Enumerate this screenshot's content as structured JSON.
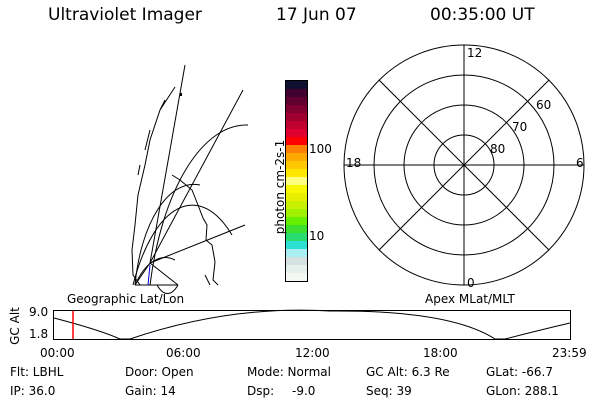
{
  "header": {
    "instrument": "Ultraviolet Imager",
    "date": "17 Jun 07",
    "time": "00:35:00 UT"
  },
  "colorbar": {
    "label": "photon cm-2s-1",
    "ticks": [
      "100",
      "10"
    ],
    "colors": [
      "#f4f8f4",
      "#e6f0ea",
      "#d6e2e0",
      "#a8eef2",
      "#2ce0d4",
      "#28dc70",
      "#3ee030",
      "#66f000",
      "#a0f000",
      "#c8f000",
      "#e6f000",
      "#f8f800",
      "#ffff80",
      "#ffe800",
      "#ffc800",
      "#ffa800",
      "#ff8000",
      "#ff0000",
      "#e00030",
      "#c00030",
      "#a00030",
      "#800030",
      "#600030",
      "#400030",
      "#101030"
    ]
  },
  "polar": {
    "labels": {
      "top": "12",
      "bottom": "0",
      "left": "18",
      "right": "6"
    },
    "lat_labels": [
      "60",
      "70",
      "80"
    ]
  },
  "timeline": {
    "left_label": "Geographic Lat/Lon",
    "right_label": "Apex MLat/MLT",
    "ylabel": "GC Alt",
    "y_ticks": [
      "9.0",
      "1.8"
    ],
    "x_ticks": [
      "00:00",
      "06:00",
      "12:00",
      "18:00",
      "23:59"
    ],
    "marker_time": "00:35",
    "marker_color": "#ff0000"
  },
  "status": {
    "flt": "Flt: LBHL",
    "ip": "IP: 36.0",
    "door": "Door: Open",
    "gain": "Gain: 14",
    "mode": "Mode: Normal",
    "dsp_label": "Dsp:",
    "dsp_value": "-9.0",
    "gcalt": "GC Alt: 6.3 Re",
    "seq": "Seq: 39",
    "glat": "GLat: -66.7",
    "glon": "GLon: 288.1"
  }
}
